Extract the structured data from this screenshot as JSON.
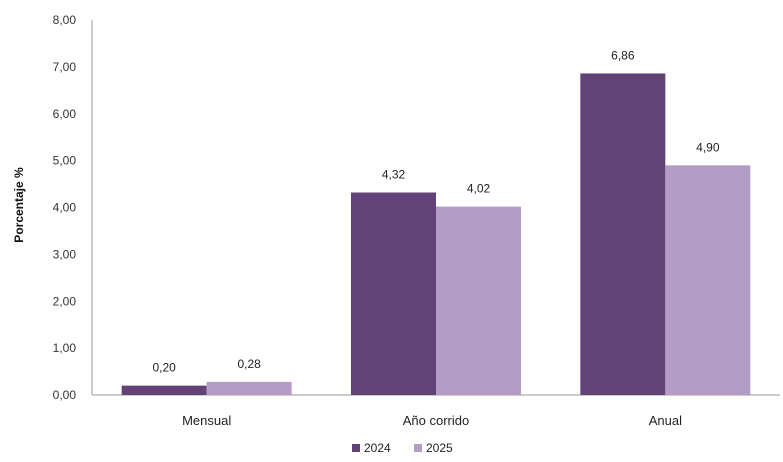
{
  "chart_data": {
    "type": "bar",
    "categories": [
      "Mensual",
      "Año corrido",
      "Anual"
    ],
    "series": [
      {
        "name": "2024",
        "values": [
          0.2,
          4.32,
          6.86
        ],
        "labels": [
          "0,20",
          "4,32",
          "6,86"
        ],
        "color": "#634277"
      },
      {
        "name": "2025",
        "values": [
          0.28,
          4.02,
          4.9
        ],
        "labels": [
          "0,28",
          "4,02",
          "4,90"
        ],
        "color": "#b39cc6"
      }
    ],
    "title": "",
    "xlabel": "",
    "ylabel": "Porcentaje %",
    "ylim": [
      0,
      8
    ],
    "yticks": [
      0,
      1,
      2,
      3,
      4,
      5,
      6,
      7,
      8
    ],
    "ytick_labels": [
      "0,00",
      "1,00",
      "2,00",
      "3,00",
      "4,00",
      "5,00",
      "6,00",
      "7,00",
      "8,00"
    ],
    "grid": false,
    "legend_position": "bottom-center"
  }
}
